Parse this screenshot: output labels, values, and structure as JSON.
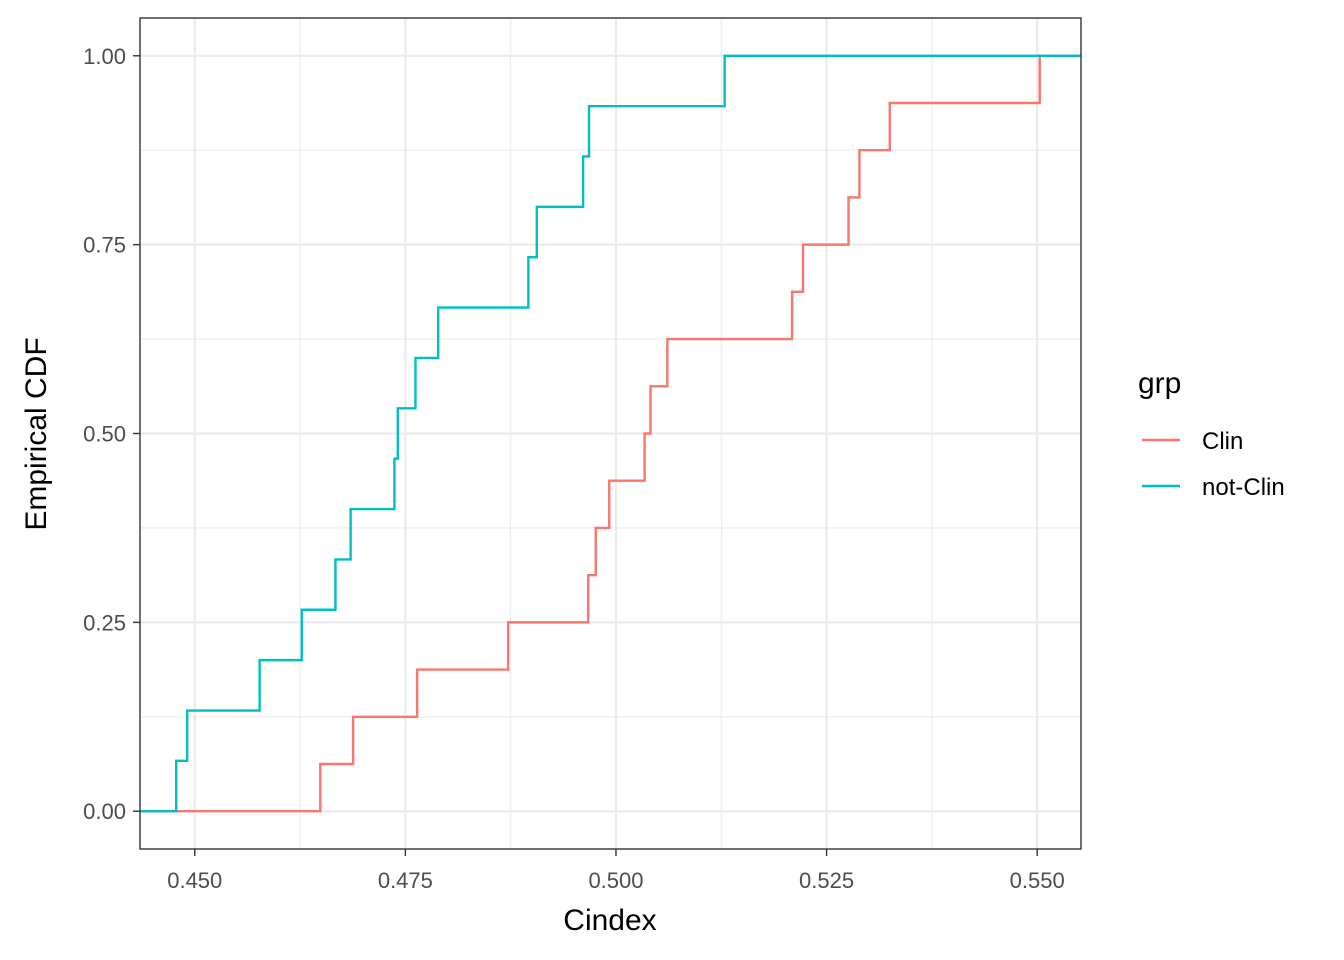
{
  "chart_data": {
    "type": "line",
    "step": true,
    "title": "",
    "xlabel": "Cindex",
    "ylabel": "Empirical CDF",
    "xlim": [
      0.4435,
      0.5552
    ],
    "ylim": [
      -0.05,
      1.05
    ],
    "x_ticks": [
      0.45,
      0.475,
      0.5,
      0.525,
      0.55
    ],
    "x_tick_labels": [
      "0.450",
      "0.475",
      "0.500",
      "0.525",
      "0.550"
    ],
    "y_ticks": [
      0,
      0.25,
      0.5,
      0.75,
      1.0
    ],
    "y_tick_labels": [
      "0.00",
      "0.25",
      "0.50",
      "0.75",
      "1.00"
    ],
    "grid": true,
    "legend": {
      "title": "grp",
      "position": "right"
    },
    "series": [
      {
        "name": "Clin",
        "color": "#F8766D",
        "x": [
          0.4649,
          0.4688,
          0.4764,
          0.4872,
          0.4967,
          0.4976,
          0.4992,
          0.5034,
          0.5041,
          0.5061,
          0.5209,
          0.5222,
          0.5276,
          0.5289,
          0.5325,
          0.5503
        ],
        "y": [
          0.0625,
          0.125,
          0.1875,
          0.25,
          0.3125,
          0.375,
          0.4375,
          0.5,
          0.5625,
          0.625,
          0.6875,
          0.75,
          0.8125,
          0.875,
          0.9375,
          1.0
        ]
      },
      {
        "name": "not-Clin",
        "color": "#00BFC4",
        "x": [
          0.4478,
          0.4491,
          0.4577,
          0.4627,
          0.4667,
          0.4685,
          0.4737,
          0.4741,
          0.4762,
          0.4789,
          0.4896,
          0.4906,
          0.4961,
          0.4968,
          0.5129
        ],
        "y": [
          0.0667,
          0.1333,
          0.2,
          0.2667,
          0.3333,
          0.4,
          0.4667,
          0.5333,
          0.6,
          0.6667,
          0.7333,
          0.8,
          0.8667,
          0.9333,
          1.0
        ]
      }
    ]
  }
}
